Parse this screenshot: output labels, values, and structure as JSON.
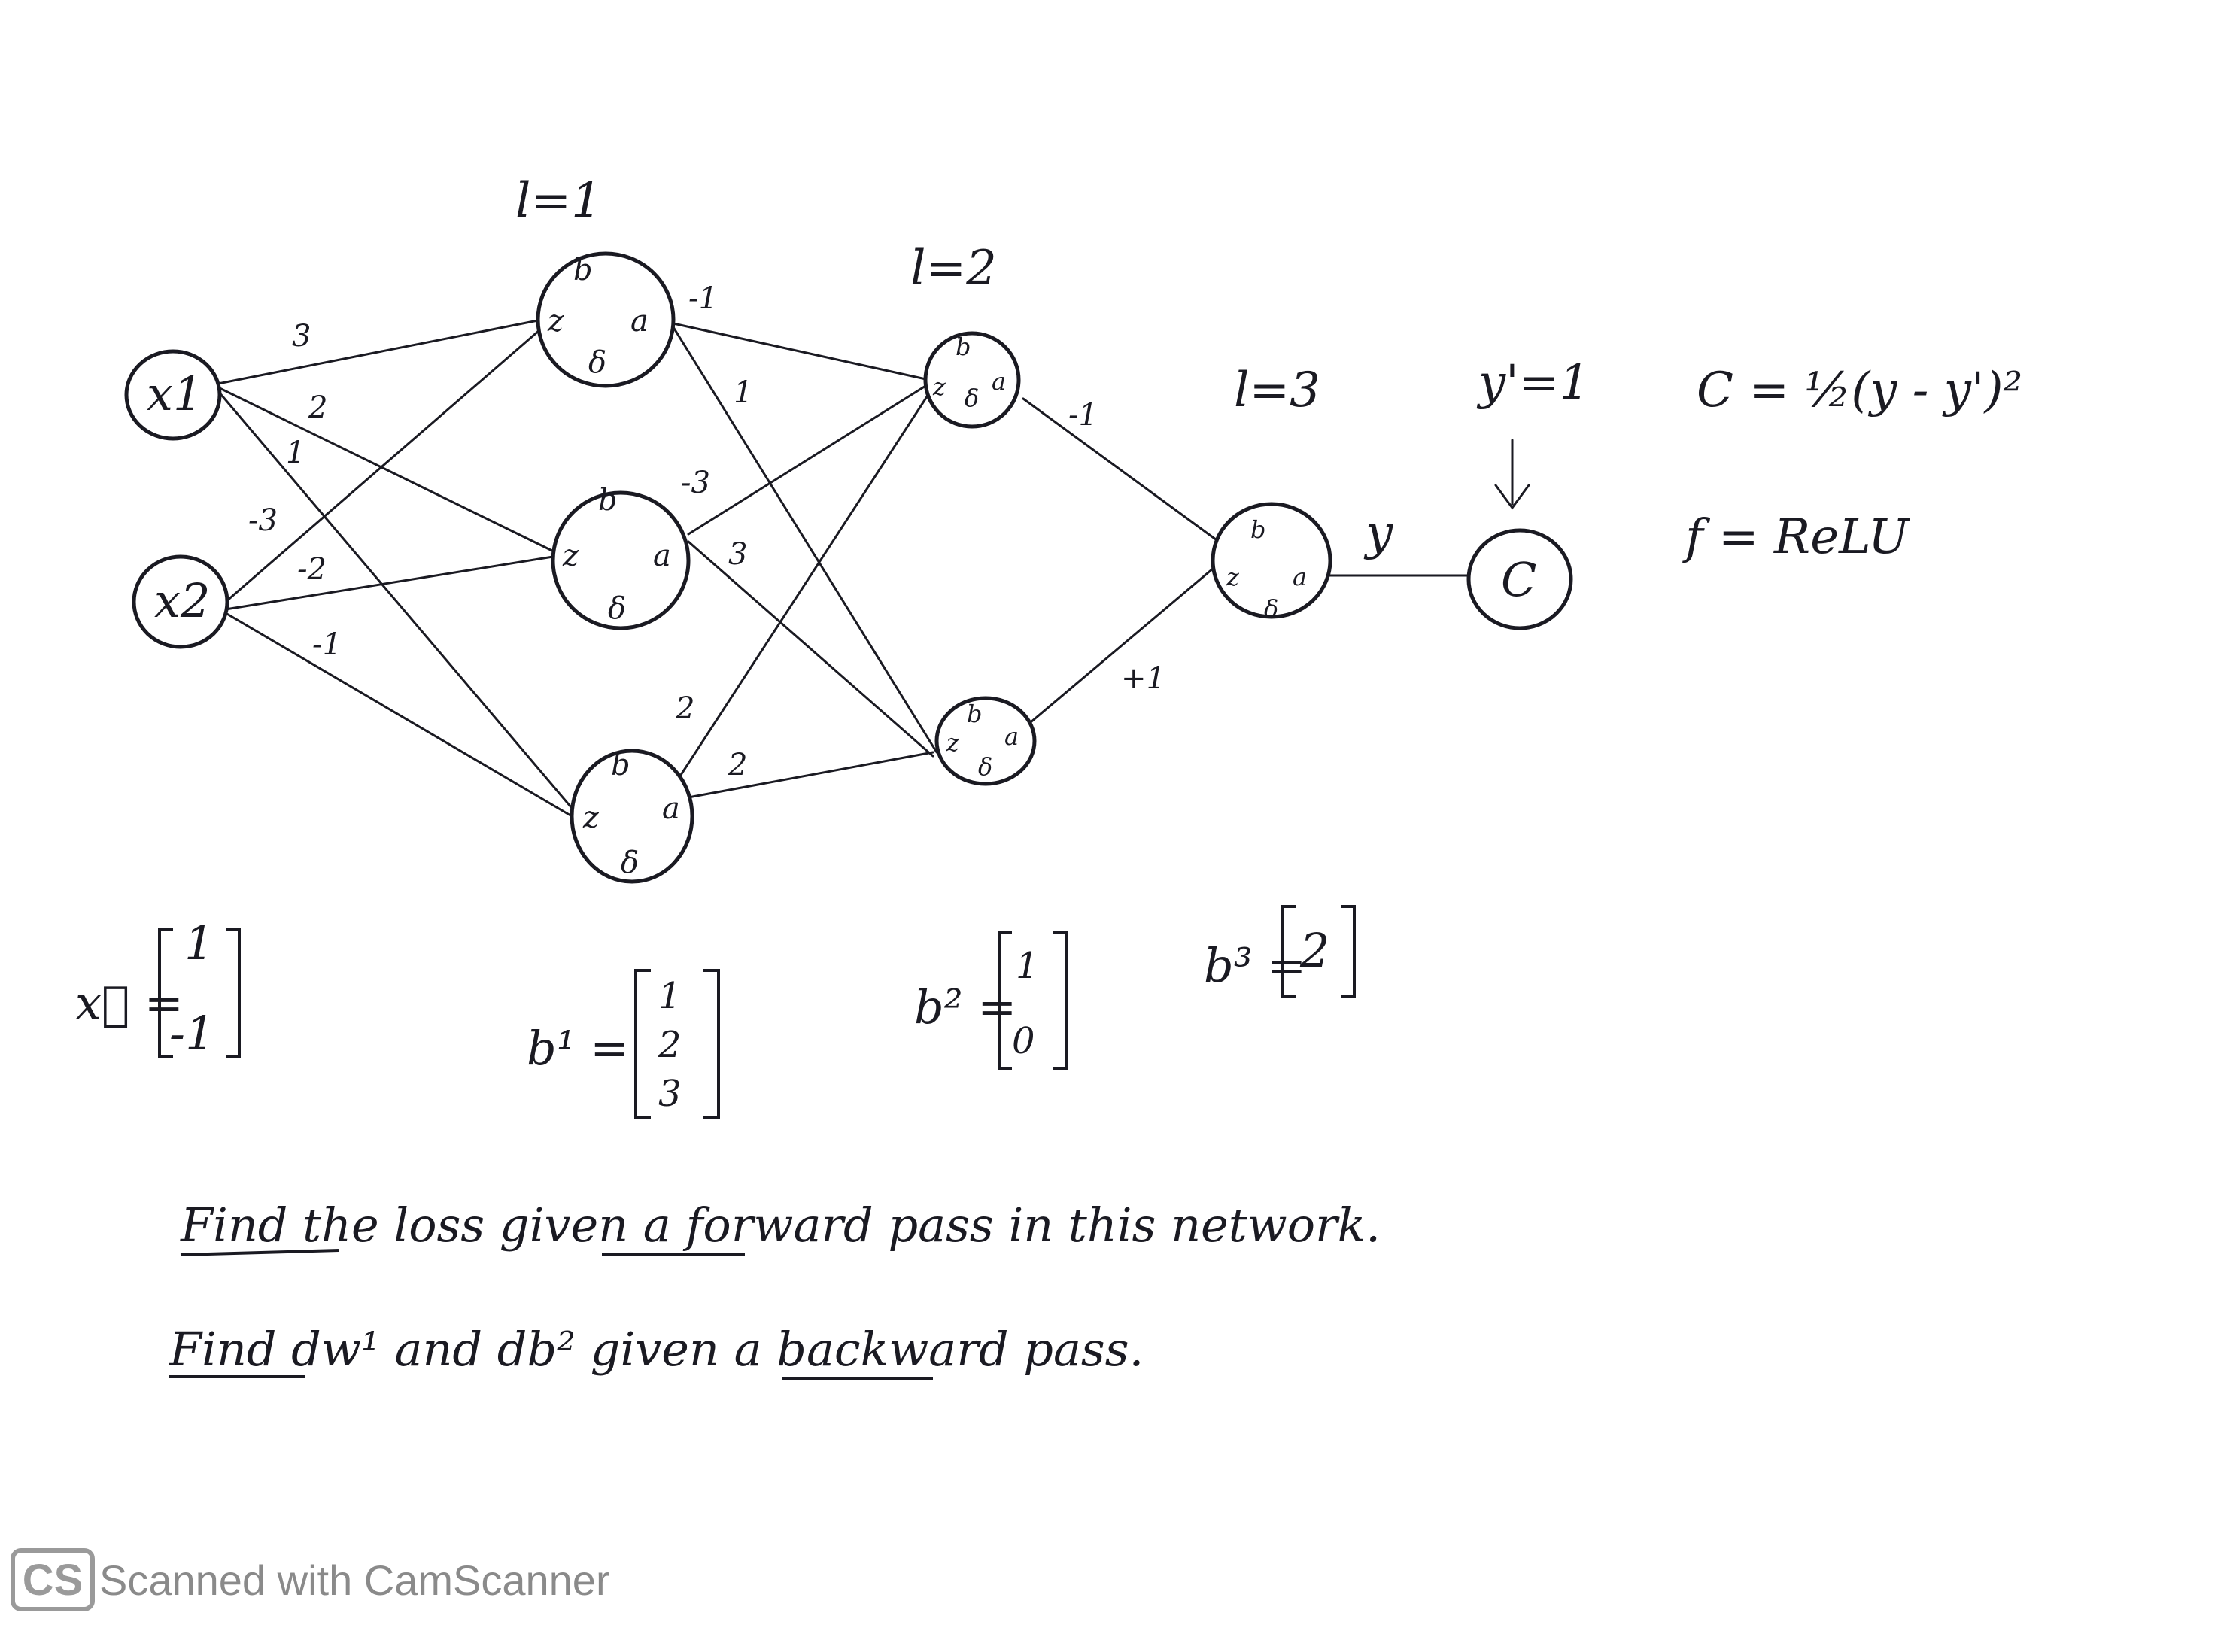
{
  "nodes": {
    "x1": "x1",
    "x2": "x2",
    "b": "b",
    "z": "z",
    "a": "a",
    "delta": "δ",
    "C": "C"
  },
  "layers": {
    "l1": "l=1",
    "l2": "l=2",
    "l3": "l=3"
  },
  "weights": {
    "x1_h1": "3",
    "x1_h2": "2",
    "x1_h3": "1",
    "x2_h1": "-3",
    "x2_h2": "-2",
    "x2_h3": "-1",
    "h1_m1": "-1",
    "h1_m2": "1",
    "h2_m1": "-3",
    "h2_m2": "3",
    "h3_m1": "2",
    "h3_m2": "2",
    "m1_out": "-1",
    "m2_out": "+1"
  },
  "output": {
    "y_label": "y",
    "target": "y'=1",
    "loss_formula": "C = ½(y - y')²",
    "activation": "f = ReLU"
  },
  "vectors": {
    "x_name": "x⃗ =",
    "x_values": [
      "1",
      "-1"
    ],
    "b1_name": "b¹ =",
    "b1_values": [
      "1",
      "2",
      "3"
    ],
    "b2_name": "b² =",
    "b2_values": [
      "1",
      "0"
    ],
    "b3_name": "b³ =",
    "b3_values": [
      "2"
    ]
  },
  "tasks": {
    "line1": "Find the loss given a forward pass in this network.",
    "line2": "Find dw¹ and db² given a backward pass."
  },
  "watermark": {
    "logo": "CS",
    "text": "Scanned with CamScanner"
  }
}
